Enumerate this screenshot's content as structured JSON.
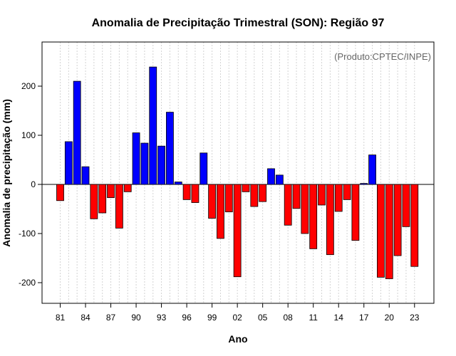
{
  "chart_data": {
    "type": "bar",
    "title": "Anomalia de Precipitação Trimestral (SON): Região 97",
    "xlabel": "Ano",
    "ylabel": "Anomalia de precipitação (mm)",
    "credit": "(Produto:CPTEC/INPE)",
    "ylim": [
      -240,
      290
    ],
    "yticks": [
      -200,
      -100,
      0,
      100,
      200
    ],
    "x_tick_labels": [
      "81",
      "84",
      "87",
      "90",
      "93",
      "96",
      "99",
      "02",
      "05",
      "08",
      "11",
      "14",
      "17",
      "20",
      "23"
    ],
    "categories": [
      "1981",
      "1982",
      "1983",
      "1984",
      "1985",
      "1986",
      "1987",
      "1988",
      "1989",
      "1990",
      "1991",
      "1992",
      "1993",
      "1994",
      "1995",
      "1996",
      "1997",
      "1998",
      "1999",
      "2000",
      "2001",
      "2002",
      "2003",
      "2004",
      "2005",
      "2006",
      "2007",
      "2008",
      "2009",
      "2010",
      "2011",
      "2012",
      "2013",
      "2014",
      "2015",
      "2016",
      "2017",
      "2018",
      "2019",
      "2020",
      "2021",
      "2022",
      "2023"
    ],
    "values": [
      -33,
      87,
      210,
      36,
      -70,
      -58,
      -27,
      -89,
      -15,
      105,
      84,
      239,
      78,
      147,
      5,
      -31,
      -37,
      64,
      -69,
      -110,
      -56,
      -188,
      -15,
      -45,
      -35,
      32,
      19,
      -83,
      -49,
      -100,
      -131,
      -42,
      -143,
      -55,
      -31,
      -114,
      2,
      60,
      -189,
      -192,
      -145,
      -86,
      -167
    ],
    "colors": {
      "positive": "#0000ff",
      "negative": "#ff0000",
      "grid": "#d3d3d3",
      "zero_line": "#000000",
      "credit": "#666666"
    }
  }
}
